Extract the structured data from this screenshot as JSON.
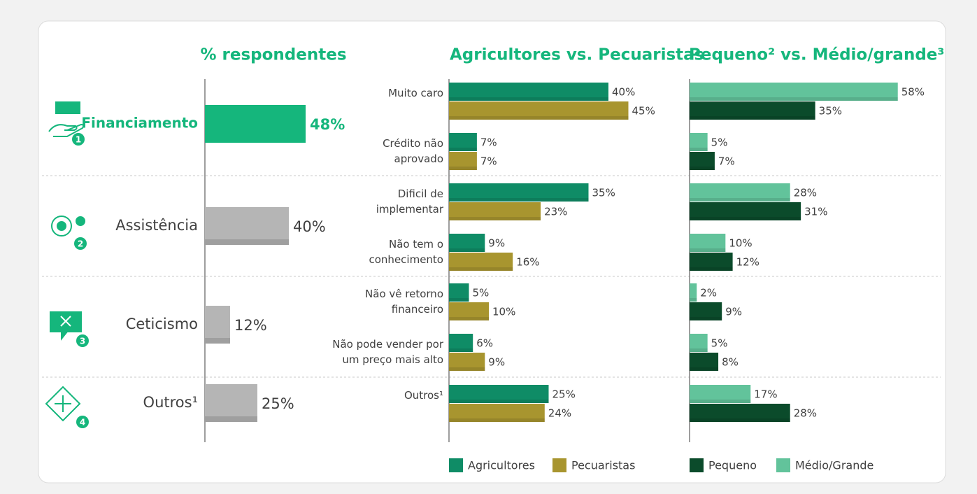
{
  "chart_data": [
    {
      "type": "bar",
      "title": "% respondentes",
      "categories": [
        "Financiamento",
        "Assistência",
        "Ceticismo",
        "Outros¹"
      ],
      "values": [
        48,
        40,
        12,
        25
      ],
      "value_labels": [
        "48%",
        "40%",
        "12%",
        "25%"
      ],
      "badges": [
        "1",
        "2",
        "3",
        "4"
      ],
      "colors": [
        "#15b67c",
        "#b5b5b5",
        "#b5b5b5",
        "#b5b5b5"
      ],
      "highlight": 0,
      "xlim": [
        0,
        50
      ]
    },
    {
      "type": "grouped-bar",
      "title": "Agricultores vs. Pecuaristas",
      "categories": [
        "Muito caro",
        "Crédito não\naprovado",
        "Dificil de\nimplementar",
        "Não tem o\nconhecimento",
        "Não vê retorno\nfinanceiro",
        "Não pode vender por\num preço mais alto",
        "Outros¹"
      ],
      "series": [
        {
          "name": "Agricultores",
          "color": "#0f8c66",
          "values": [
            40,
            7,
            35,
            9,
            5,
            6,
            25
          ],
          "value_labels": [
            "40%",
            "7%",
            "35%",
            "9%",
            "5%",
            "6%",
            "25%"
          ]
        },
        {
          "name": "Pecuaristas",
          "color": "#a8952f",
          "values": [
            45,
            7,
            23,
            16,
            10,
            9,
            24
          ],
          "value_labels": [
            "45%",
            "7%",
            "23%",
            "16%",
            "10%",
            "9%",
            "24%"
          ]
        }
      ],
      "xlim": [
        0,
        50
      ]
    },
    {
      "type": "grouped-bar",
      "title": "Pequeno² vs. Médio/grande³",
      "series": [
        {
          "name": "Pequeno",
          "color": "#0b4b2b",
          "values": [
            35,
            7,
            31,
            12,
            9,
            8,
            28
          ],
          "value_labels": [
            "35%",
            "7%",
            "31%",
            "12%",
            "9%",
            "8%",
            "28%"
          ]
        },
        {
          "name": "Médio/Grande",
          "color": "#62c39b",
          "values": [
            58,
            5,
            28,
            10,
            2,
            5,
            17
          ],
          "value_labels": [
            "58%",
            "5%",
            "28%",
            "10%",
            "2%",
            "5%",
            "17%"
          ]
        }
      ],
      "xlim": [
        0,
        60
      ]
    }
  ]
}
